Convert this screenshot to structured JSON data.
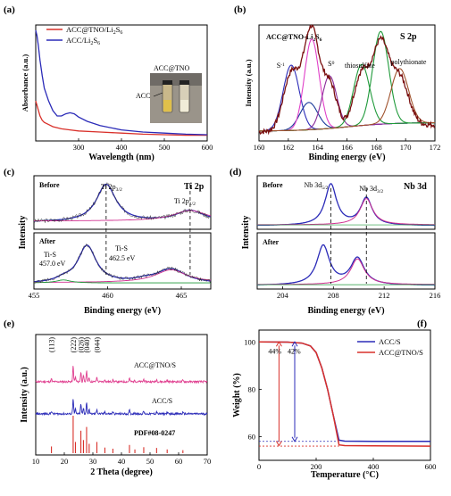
{
  "chart_data": [
    {
      "panel": "(a)",
      "type": "line",
      "xlabel": "Wavelength (nm)",
      "ylabel": "Absorbance (a.u.)",
      "xlim": [
        200,
        600
      ],
      "xticks": [
        200,
        300,
        400,
        500,
        600
      ],
      "xticklabels": [
        "",
        "300",
        "400",
        "500",
        "600"
      ],
      "series": [
        {
          "name": "ACC@TNO/Li2S6",
          "color": "#d9302a",
          "x": [
            200,
            205,
            210,
            215,
            220,
            230,
            240,
            260,
            280,
            300,
            350,
            400,
            450,
            500,
            550,
            600
          ],
          "y": [
            0.34,
            0.27,
            0.2,
            0.16,
            0.14,
            0.12,
            0.1,
            0.08,
            0.07,
            0.06,
            0.05,
            0.04,
            0.03,
            0.025,
            0.02,
            0.02
          ]
        },
        {
          "name": "ACC/Li2S6",
          "color": "#2b2bb8",
          "x": [
            200,
            203,
            206,
            210,
            215,
            220,
            230,
            240,
            250,
            260,
            270,
            280,
            290,
            300,
            320,
            350,
            400,
            450,
            500,
            550,
            600
          ],
          "y": [
            1.0,
            0.95,
            0.86,
            0.72,
            0.58,
            0.46,
            0.34,
            0.25,
            0.2,
            0.2,
            0.22,
            0.23,
            0.22,
            0.19,
            0.15,
            0.11,
            0.07,
            0.05,
            0.04,
            0.03,
            0.025
          ]
        }
      ],
      "legend": [
        {
          "label": "ACC@TNO/Li",
          "sub": "2",
          "label2": "S",
          "sub2": "6",
          "color": "#d9302a"
        },
        {
          "label": "ACC/Li",
          "sub": "2",
          "label2": "S",
          "sub2": "6",
          "color": "#2b2bb8"
        }
      ],
      "legend_position": "top-right",
      "inset": {
        "labels": [
          "ACC",
          "ACC@TNO"
        ]
      }
    },
    {
      "panel": "(b)",
      "type": "line",
      "title": "S 2p",
      "sample_label": {
        "text": "ACC@TNO-Li",
        "sub": "2",
        "text2": "S",
        "sub2": "6"
      },
      "xlabel": "Binding energy (eV)",
      "ylabel": "Intensity (a.u.)",
      "xlim": [
        160,
        172
      ],
      "xticks": [
        160,
        162,
        164,
        166,
        168,
        170,
        172
      ],
      "x_reversed": false,
      "components": [
        {
          "color": "#2b2bb8",
          "center": 162.2,
          "height": 0.62,
          "width": 0.55
        },
        {
          "color": "#1a3a9a",
          "center": 163.4,
          "height": 0.26,
          "width": 0.6
        },
        {
          "color": "#e040c8",
          "center": 163.6,
          "height": 0.86,
          "width": 0.5
        },
        {
          "color": "#8a2c9a",
          "center": 164.8,
          "height": 0.5,
          "width": 0.5
        },
        {
          "color": "#1f9a3a",
          "center": 167.0,
          "height": 0.58,
          "width": 0.55
        },
        {
          "color": "#1f9a3a",
          "center": 168.3,
          "height": 0.88,
          "width": 0.55
        },
        {
          "color": "#a0522d",
          "center": 169.6,
          "height": 0.52,
          "width": 0.6
        }
      ],
      "annotations": [
        {
          "text": "S",
          "sub": "T",
          "sup": "-1",
          "x": 161.2
        },
        {
          "text": "S",
          "sub": "B",
          "sup": "0",
          "x": 164.7
        },
        {
          "text": "thiosulfate",
          "x": 166.7
        },
        {
          "text": "polythionate",
          "x": 170.2
        }
      ]
    },
    {
      "panel": "(c)",
      "type": "line",
      "title": "Ti 2p",
      "xlabel": "Binding energy (eV)",
      "ylabel": "Intensity",
      "xlim": [
        455,
        467
      ],
      "xticks": [
        455,
        460,
        465
      ],
      "subplots": [
        {
          "label": "Before",
          "peaks": [
            {
              "text": "Ti 2p",
              "sub": "3/2",
              "center": 459.9
            },
            {
              "text": "Ti 2p",
              "sub": "1/2",
              "center": 465.6
            }
          ]
        },
        {
          "label": "After",
          "peaks": [
            {
              "text": "Ti-S",
              "value": "457.0 eV",
              "center": 457.0
            },
            {
              "text": "Ti-S",
              "value": "462.5 eV",
              "center": 462.5
            }
          ]
        }
      ]
    },
    {
      "panel": "(d)",
      "type": "line",
      "title": "Nb 3d",
      "xlabel": "Binding energy (eV)",
      "ylabel": "Intensity",
      "xlim": [
        202,
        216
      ],
      "xticks": [
        204,
        208,
        212,
        216
      ],
      "subplots": [
        {
          "label": "Before",
          "peaks": [
            {
              "text": "Nb 3d",
              "sub": "5/2",
              "center": 207.8
            },
            {
              "text": "Nb 3d",
              "sub": "3/2",
              "center": 210.6
            }
          ]
        },
        {
          "label": "After",
          "peaks": []
        }
      ]
    },
    {
      "panel": "(e)",
      "type": "line",
      "xlabel": "2 Theta (degree)",
      "ylabel": "Intensity (a.u.)",
      "xlim": [
        10,
        70
      ],
      "xticks": [
        10,
        20,
        30,
        40,
        50,
        60,
        70
      ],
      "series": [
        {
          "name": "ACC@TNO/S",
          "color": "#e04090"
        },
        {
          "name": "ACC/S",
          "color": "#2b2bb8"
        },
        {
          "name": "PDF#08-0247",
          "color": "#d9302a"
        }
      ],
      "reflections": [
        "(113)",
        "(222)",
        "(026)",
        "(040)",
        "(044)"
      ],
      "reflection_positions": [
        15.5,
        23.1,
        25.8,
        27.8,
        31.4
      ],
      "pdf_lines": [
        {
          "x": 15.5,
          "h": 0.18
        },
        {
          "x": 23.1,
          "h": 1.0
        },
        {
          "x": 23.9,
          "h": 0.3
        },
        {
          "x": 25.8,
          "h": 0.6
        },
        {
          "x": 26.7,
          "h": 0.35
        },
        {
          "x": 27.8,
          "h": 0.7
        },
        {
          "x": 28.7,
          "h": 0.25
        },
        {
          "x": 31.4,
          "h": 0.3
        },
        {
          "x": 34.2,
          "h": 0.15
        },
        {
          "x": 37.0,
          "h": 0.12
        },
        {
          "x": 42.8,
          "h": 0.22
        },
        {
          "x": 44.7,
          "h": 0.1
        },
        {
          "x": 47.8,
          "h": 0.16
        },
        {
          "x": 52.3,
          "h": 0.14
        },
        {
          "x": 56.0,
          "h": 0.1
        },
        {
          "x": 61.5,
          "h": 0.08
        }
      ]
    },
    {
      "panel": "(f)",
      "type": "line",
      "xlabel": "Temperature (°C)",
      "ylabel": "Weight (%)",
      "xlim": [
        0,
        600
      ],
      "ylim": [
        50,
        105
      ],
      "xticks": [
        0,
        200,
        400,
        600
      ],
      "yticks": [
        60,
        80,
        100
      ],
      "series": [
        {
          "name": "ACC/S",
          "color": "#2b2bb8",
          "x": [
            0,
            100,
            150,
            180,
            200,
            220,
            240,
            260,
            280,
            300,
            400,
            600
          ],
          "y": [
            100,
            99.9,
            99.5,
            98.3,
            95.5,
            89,
            80,
            69,
            58.5,
            58.1,
            58.0,
            58.0
          ]
        },
        {
          "name": "ACC@TNO/S",
          "color": "#d9302a",
          "x": [
            0,
            100,
            150,
            180,
            200,
            220,
            240,
            260,
            280,
            300,
            400,
            600
          ],
          "y": [
            100,
            99.9,
            99.5,
            98.3,
            95.5,
            89,
            80,
            69,
            56.5,
            56.2,
            56.1,
            56.0
          ]
        }
      ],
      "annotations": [
        {
          "text": "44%",
          "x": 70,
          "color": "#d9302a"
        },
        {
          "text": "42%",
          "x": 125,
          "color": "#2b2bb8"
        }
      ],
      "legend_position": "top-right"
    }
  ]
}
